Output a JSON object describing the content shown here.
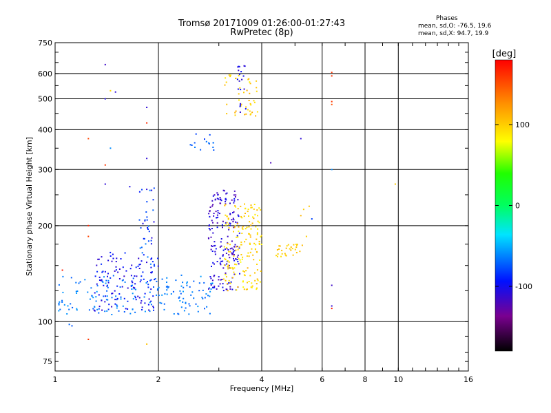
{
  "header": {
    "title": "Tromsø 20171009 01:26:00-01:27:43",
    "subtitle": "RwPretec (8p)",
    "stats_title": "Phases",
    "stats_line1": "mean, sd,O: -76.5, 19.6",
    "stats_line2": "mean, sd,X:  94.7, 19.9"
  },
  "chart_data": {
    "type": "scatter",
    "title": "Tromsø 20171009 01:26:00-01:27:43",
    "subtitle": "RwPretec (8p)",
    "xlabel": "Frequency [MHz]",
    "ylabel": "Stationary phase Virtual Height [km]",
    "x_scale": "log",
    "y_scale": "log",
    "xlim": [
      1,
      16
    ],
    "ylim": [
      70,
      750
    ],
    "x_ticks": [
      1,
      2,
      4,
      6,
      8,
      10,
      16
    ],
    "y_ticks": [
      75,
      100,
      200,
      300,
      400,
      500,
      600,
      750
    ],
    "x_grid": [
      2,
      4,
      6,
      8,
      10
    ],
    "y_grid": [
      100,
      200,
      300,
      400,
      500,
      600
    ],
    "grid": true,
    "colorbar": {
      "label": "[deg]",
      "range": [
        -180,
        180
      ],
      "ticks": [
        100,
        0,
        -100
      ]
    },
    "clusters": [
      {
        "name": "low-cyan",
        "x": [
          1.02,
          2.9
        ],
        "y": [
          105,
          140
        ],
        "phase": [
          -75,
          -55
        ],
        "n": 180
      },
      {
        "name": "low-blue",
        "x": [
          1.3,
          2.0
        ],
        "y": [
          108,
          165
        ],
        "phase": [
          -115,
          -85
        ],
        "n": 120
      },
      {
        "name": "column-1.9",
        "x": [
          1.75,
          1.95
        ],
        "y": [
          130,
          270
        ],
        "phase": [
          -110,
          -60
        ],
        "n": 40
      },
      {
        "name": "o-trace-blue",
        "x": [
          2.8,
          3.45
        ],
        "y": [
          125,
          260
        ],
        "phase": [
          -125,
          -95
        ],
        "n": 190
      },
      {
        "name": "x-trace-yellow",
        "x": [
          3.1,
          4.0
        ],
        "y": [
          125,
          235
        ],
        "phase": [
          80,
          115
        ],
        "n": 170
      },
      {
        "name": "yellow-ext",
        "x": [
          4.4,
          5.3
        ],
        "y": [
          160,
          175
        ],
        "phase": [
          90,
          110
        ],
        "n": 30
      },
      {
        "name": "high-yellow",
        "x": [
          3.1,
          3.9
        ],
        "y": [
          440,
          600
        ],
        "phase": [
          85,
          115
        ],
        "n": 45
      },
      {
        "name": "high-blue",
        "x": [
          3.4,
          3.6
        ],
        "y": [
          430,
          640
        ],
        "phase": [
          -115,
          -95
        ],
        "n": 20
      },
      {
        "name": "echo-2.5",
        "x": [
          2.45,
          2.9
        ],
        "y": [
          340,
          390
        ],
        "phase": [
          -85,
          -65
        ],
        "n": 15
      }
    ],
    "points": [
      [
        1.4,
        640,
        -115
      ],
      [
        1.4,
        500,
        -105
      ],
      [
        1.5,
        525,
        -110
      ],
      [
        1.45,
        530,
        95
      ],
      [
        1.85,
        470,
        -110
      ],
      [
        1.85,
        420,
        165
      ],
      [
        1.85,
        325,
        -110
      ],
      [
        1.25,
        375,
        155
      ],
      [
        1.45,
        350,
        -60
      ],
      [
        1.4,
        310,
        160
      ],
      [
        1.4,
        270,
        -110
      ],
      [
        1.65,
        265,
        -105
      ],
      [
        1.85,
        260,
        -110
      ],
      [
        1.25,
        200,
        165
      ],
      [
        1.25,
        185,
        155
      ],
      [
        1.05,
        145,
        170
      ],
      [
        1.1,
        98,
        -70
      ],
      [
        1.12,
        97,
        -75
      ],
      [
        1.25,
        88,
        160
      ],
      [
        1.85,
        85,
        105
      ],
      [
        5.2,
        375,
        -110
      ],
      [
        4.25,
        315,
        -120
      ],
      [
        6.4,
        300,
        -60
      ],
      [
        6.4,
        605,
        160
      ],
      [
        6.4,
        590,
        160
      ],
      [
        6.4,
        490,
        160
      ],
      [
        6.4,
        480,
        150
      ],
      [
        6.4,
        130,
        -115
      ],
      [
        6.4,
        112,
        -110
      ],
      [
        6.4,
        110,
        170
      ],
      [
        9.8,
        270,
        100
      ],
      [
        5.6,
        210,
        -80
      ],
      [
        5.3,
        225,
        100
      ],
      [
        5.5,
        230,
        105
      ],
      [
        5.2,
        215,
        110
      ],
      [
        5.4,
        185,
        100
      ]
    ]
  }
}
